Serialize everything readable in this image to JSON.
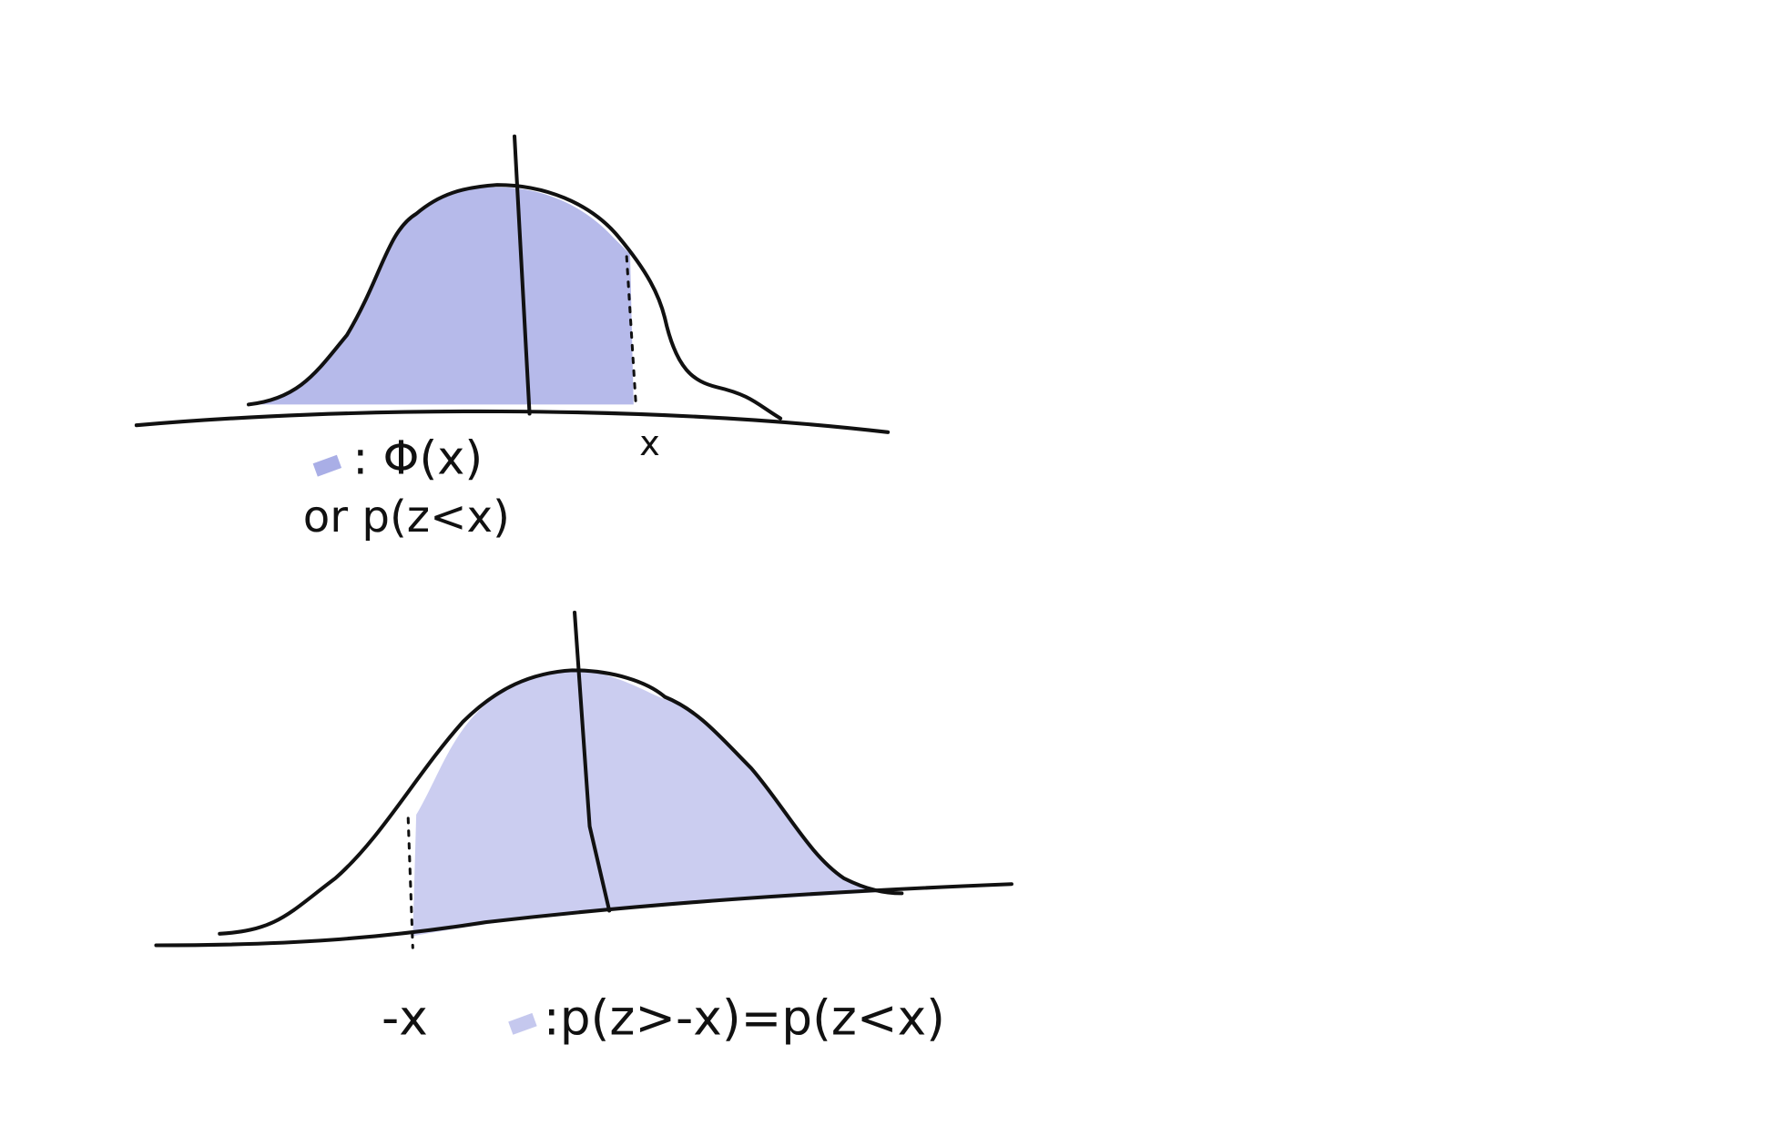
{
  "top": {
    "x_label": "x",
    "legend": ": Φ(x)",
    "alt": "or p(z<x)"
  },
  "bottom": {
    "x_label": "-x",
    "legend": ":p(z>-x)=p(z<x)"
  }
}
